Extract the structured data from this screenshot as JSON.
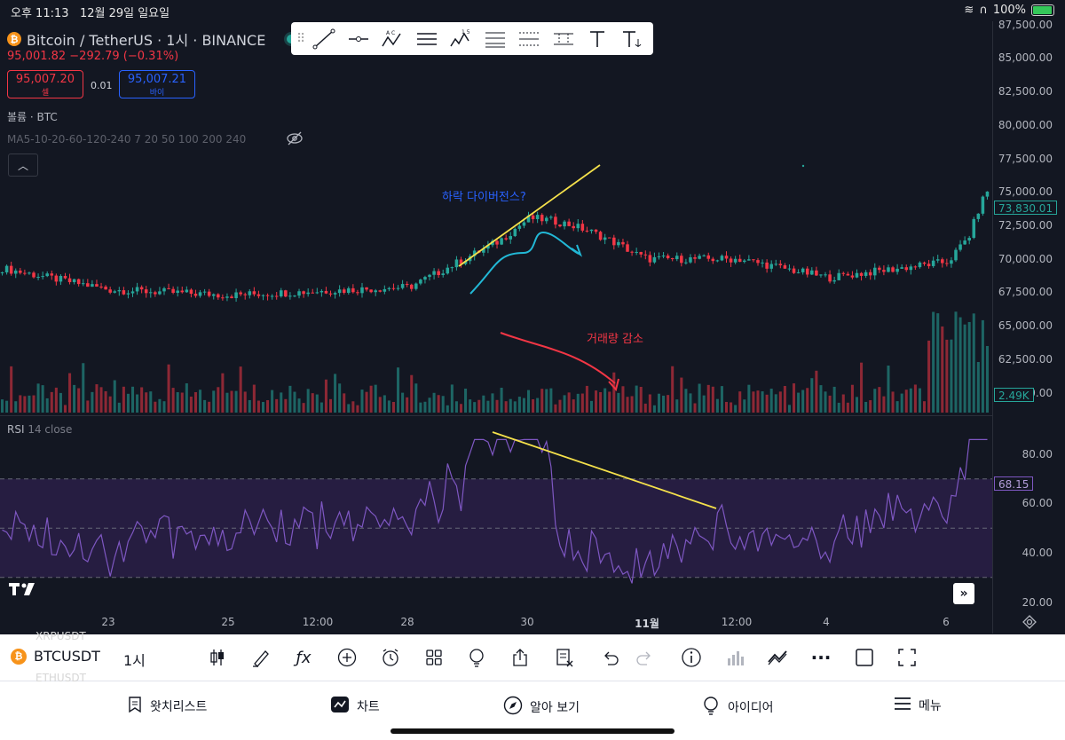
{
  "status_bar": {
    "time": "오후 11:13",
    "date": "12월 29일 일요일",
    "battery": "100%",
    "icons": [
      "wifi-icon",
      "headphones-icon",
      "battery-icon"
    ]
  },
  "symbol_header": {
    "title": "Bitcoin / TetherUS · 1시 · BINANCE",
    "price_line": "95,001.82  −292.79 (−0.31%)",
    "sell_price": "95,007.20",
    "sell_label": "셀",
    "spread": "0.01",
    "buy_price": "95,007.21",
    "buy_label": "바이"
  },
  "legends": {
    "volume": "볼륨 · BTC",
    "ma": "MA5-10-20-60-120-240 7 20 50 100 200 240",
    "rsi_name": "RSI",
    "rsi_params": "14 close"
  },
  "drawing_toolbar": {
    "tools": [
      "trend-line-icon",
      "horizontal-ray-icon",
      "abcd-pattern-icon",
      "parallel-channel-icon",
      "elliott-wave-icon",
      "fib-retracement-icon",
      "fib-extension-icon",
      "pitchfork-icon",
      "text-icon",
      "anchored-text-icon"
    ]
  },
  "price_axis": [
    "87,500.00",
    "85,000.00",
    "82,500.00",
    "80,000.00",
    "77,500.00",
    "75,000.00",
    "72,500.00",
    "70,000.00",
    "67,500.00",
    "65,000.00",
    "62,500.00",
    "60,000.00"
  ],
  "current_price_tag": "73,830.01",
  "volume_tag": "2.49K",
  "rsi_axis": [
    "80.00",
    "60.00",
    "40.00",
    "20.00"
  ],
  "rsi_tag": "68.15",
  "time_axis": [
    "23",
    "25",
    "12:00",
    "28",
    "30",
    "11월",
    "12:00",
    "4",
    "6"
  ],
  "annotations": {
    "divergence": "하락 다이버전스?",
    "volume_drop": "거래량 감소"
  },
  "colors": {
    "background": "#131722",
    "up": "#26a69a",
    "down": "#f23645",
    "rsi_line": "#7e57c2",
    "rsi_band": "#2a1f47",
    "trendline": "#f5e14b",
    "divergence_text": "#2962ff",
    "cyan_arrow": "#22b8d6",
    "volume_text": "#f23645"
  },
  "bottom_toolbar": {
    "symbol": "BTCUSDT",
    "interval": "1시",
    "ghost_above": "XRPUSDT",
    "ghost_below": "ETHUSDT",
    "icons": [
      "candle-type-icon",
      "drawing-brush-icon",
      "indicators-fx-icon",
      "add-plus-icon",
      "alarm-icon",
      "templates-grid-icon",
      "ideas-bulb-icon",
      "share-icon",
      "remove-drawings-icon",
      "undo-icon",
      "redo-icon",
      "info-icon",
      "volume-chart-icon",
      "compare-icon",
      "more-icon",
      "layout-square-icon",
      "fullscreen-icon"
    ]
  },
  "tabs": [
    {
      "label": "왓치리스트",
      "icon": "bookmark-icon"
    },
    {
      "label": "차트",
      "icon": "chart-icon"
    },
    {
      "label": "알아 보기",
      "icon": "compass-icon"
    },
    {
      "label": "아이디어",
      "icon": "bulb-icon"
    },
    {
      "label": "메뉴",
      "icon": "hamburger-icon"
    }
  ],
  "chart_data": {
    "type": "candlestick",
    "price_axis_range": [
      60000,
      87500
    ],
    "time_labels": [
      "23",
      "25",
      "12:00",
      "28",
      "30",
      "11월",
      "12:00",
      "4",
      "6"
    ],
    "close_anchors": [
      {
        "x": "start",
        "y": 69300
      },
      {
        "x": "23",
        "y": 67700
      },
      {
        "x": "25",
        "y": 67300
      },
      {
        "x": "12:00",
        "y": 67600
      },
      {
        "x": "28",
        "y": 67900
      },
      {
        "x": "30",
        "y": 72500
      },
      {
        "x": "11월",
        "y": 70000
      },
      {
        "x": "12:00",
        "y": 70000
      },
      {
        "x": "4",
        "y": 68600
      },
      {
        "x": "6",
        "y": 69800
      },
      {
        "x": "end",
        "y": 73830.01
      }
    ],
    "rsi_range": [
      20,
      90
    ],
    "rsi_bands": [
      70,
      50,
      30
    ],
    "rsi_last": 68.15,
    "volume_last": "2.49K"
  }
}
